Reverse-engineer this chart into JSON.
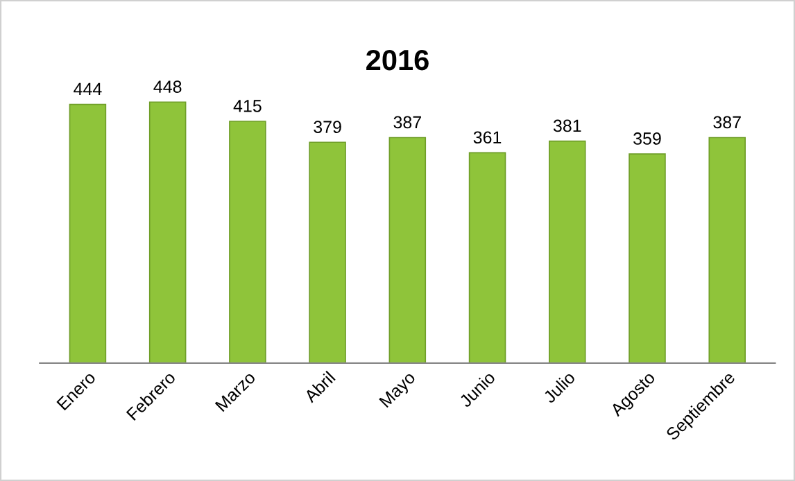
{
  "chart_data": {
    "type": "bar",
    "title": "2016",
    "categories": [
      "Enero",
      "Febrero",
      "Marzo",
      "Abril",
      "Mayo",
      "Junio",
      "Julio",
      "Agosto",
      "Septiembre"
    ],
    "values": [
      444,
      448,
      415,
      379,
      387,
      361,
      381,
      359,
      387
    ],
    "color": "#8fc43a",
    "data_labels": true,
    "grid": false,
    "legend": false
  }
}
